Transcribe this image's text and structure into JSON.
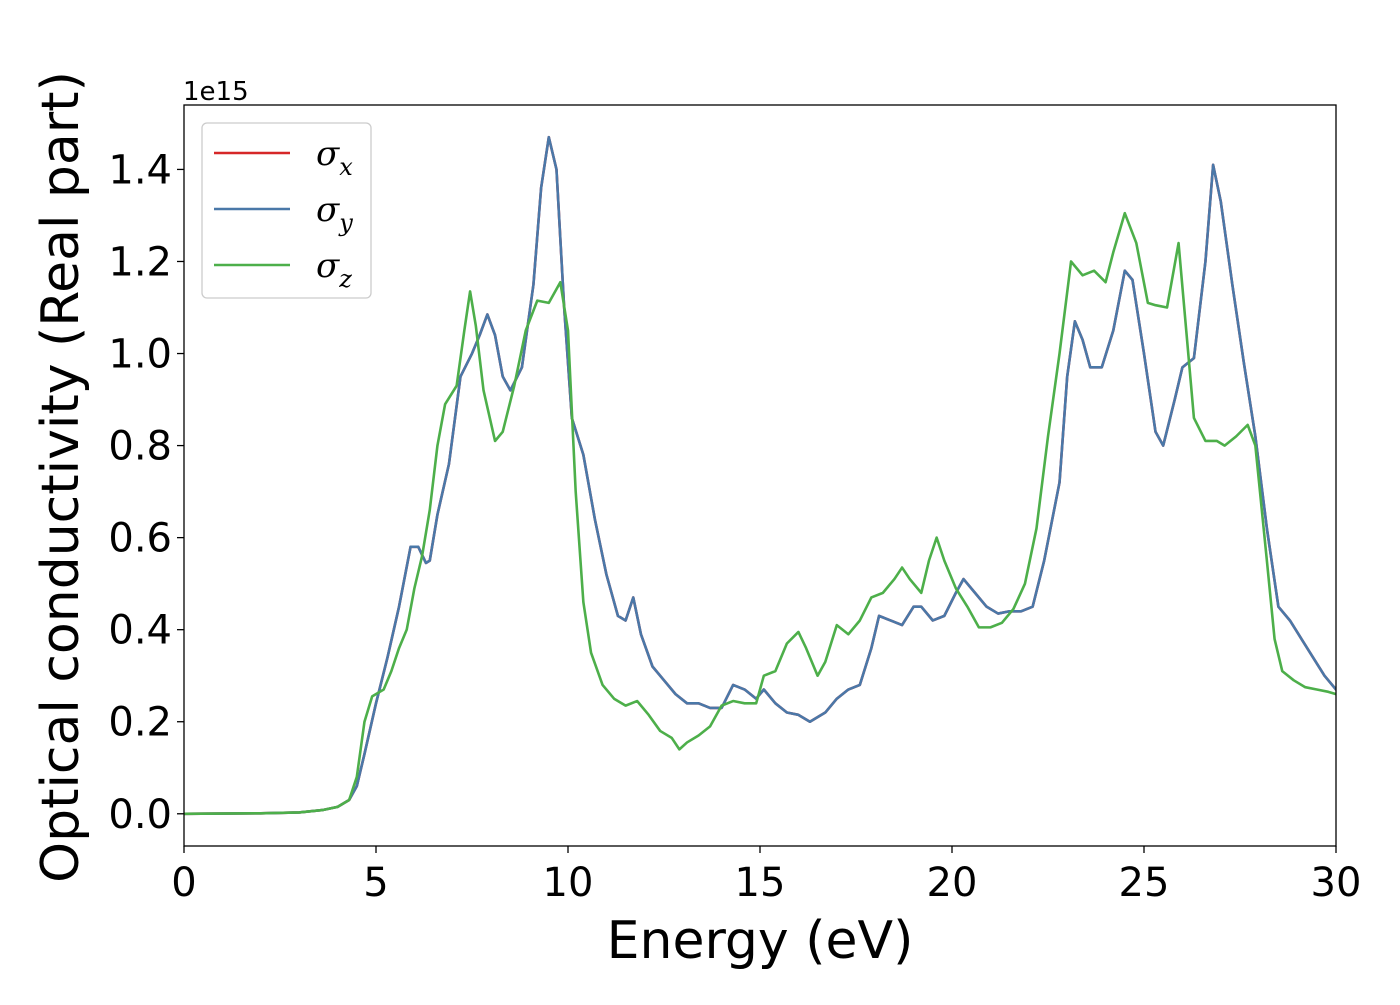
{
  "chart_data": {
    "type": "line",
    "xlabel": "Energy (eV)",
    "ylabel": "Optical conductivity (Real part)",
    "y_offset_label": "1e15",
    "xlim": [
      0,
      30
    ],
    "ylim": [
      -0.07,
      1.54
    ],
    "x_ticks": [
      0,
      5,
      10,
      15,
      20,
      25,
      30
    ],
    "x_tick_labels": [
      "0",
      "5",
      "10",
      "15",
      "20",
      "25",
      "30"
    ],
    "y_ticks": [
      0.0,
      0.2,
      0.4,
      0.6,
      0.8,
      1.0,
      1.2,
      1.4
    ],
    "y_tick_labels": [
      "0.0",
      "0.2",
      "0.4",
      "0.6",
      "0.8",
      "1.0",
      "1.2",
      "1.4"
    ],
    "grid": false,
    "legend_position": "top-left",
    "series": [
      {
        "name": "σ",
        "subscript": "x",
        "color": "#d62728",
        "points": [
          [
            0,
            0
          ],
          [
            2,
            0.001
          ],
          [
            3,
            0.003
          ],
          [
            3.6,
            0.008
          ],
          [
            4,
            0.015
          ],
          [
            4.3,
            0.03
          ],
          [
            4.5,
            0.06
          ],
          [
            4.7,
            0.13
          ],
          [
            5,
            0.24
          ],
          [
            5.3,
            0.34
          ],
          [
            5.6,
            0.45
          ],
          [
            5.9,
            0.58
          ],
          [
            6.1,
            0.58
          ],
          [
            6.3,
            0.545
          ],
          [
            6.4,
            0.55
          ],
          [
            6.6,
            0.65
          ],
          [
            6.9,
            0.76
          ],
          [
            7.2,
            0.95
          ],
          [
            7.5,
            1.0
          ],
          [
            7.7,
            1.04
          ],
          [
            7.9,
            1.085
          ],
          [
            8.1,
            1.04
          ],
          [
            8.3,
            0.95
          ],
          [
            8.5,
            0.92
          ],
          [
            8.8,
            0.97
          ],
          [
            9.1,
            1.15
          ],
          [
            9.3,
            1.36
          ],
          [
            9.5,
            1.47
          ],
          [
            9.7,
            1.4
          ],
          [
            9.9,
            1.1
          ],
          [
            10.1,
            0.86
          ],
          [
            10.4,
            0.78
          ],
          [
            10.7,
            0.64
          ],
          [
            11,
            0.52
          ],
          [
            11.3,
            0.43
          ],
          [
            11.5,
            0.42
          ],
          [
            11.7,
            0.47
          ],
          [
            11.9,
            0.39
          ],
          [
            12.2,
            0.32
          ],
          [
            12.5,
            0.29
          ],
          [
            12.8,
            0.26
          ],
          [
            13.1,
            0.24
          ],
          [
            13.4,
            0.24
          ],
          [
            13.7,
            0.23
          ],
          [
            14,
            0.23
          ],
          [
            14.3,
            0.28
          ],
          [
            14.6,
            0.27
          ],
          [
            14.9,
            0.25
          ],
          [
            15.1,
            0.27
          ],
          [
            15.4,
            0.24
          ],
          [
            15.7,
            0.22
          ],
          [
            16,
            0.215
          ],
          [
            16.3,
            0.2
          ],
          [
            16.7,
            0.22
          ],
          [
            17,
            0.25
          ],
          [
            17.3,
            0.27
          ],
          [
            17.6,
            0.28
          ],
          [
            17.9,
            0.36
          ],
          [
            18.1,
            0.43
          ],
          [
            18.4,
            0.42
          ],
          [
            18.7,
            0.41
          ],
          [
            19,
            0.45
          ],
          [
            19.2,
            0.45
          ],
          [
            19.5,
            0.42
          ],
          [
            19.8,
            0.43
          ],
          [
            20.1,
            0.48
          ],
          [
            20.3,
            0.51
          ],
          [
            20.6,
            0.48
          ],
          [
            20.9,
            0.45
          ],
          [
            21.2,
            0.435
          ],
          [
            21.5,
            0.44
          ],
          [
            21.8,
            0.44
          ],
          [
            22.1,
            0.45
          ],
          [
            22.4,
            0.55
          ],
          [
            22.8,
            0.72
          ],
          [
            23,
            0.95
          ],
          [
            23.2,
            1.07
          ],
          [
            23.4,
            1.03
          ],
          [
            23.6,
            0.97
          ],
          [
            23.9,
            0.97
          ],
          [
            24.2,
            1.05
          ],
          [
            24.5,
            1.18
          ],
          [
            24.7,
            1.16
          ],
          [
            25,
            1.0
          ],
          [
            25.3,
            0.83
          ],
          [
            25.5,
            0.8
          ],
          [
            25.8,
            0.9
          ],
          [
            26,
            0.97
          ],
          [
            26.3,
            0.99
          ],
          [
            26.6,
            1.2
          ],
          [
            26.8,
            1.41
          ],
          [
            27,
            1.33
          ],
          [
            27.3,
            1.15
          ],
          [
            27.6,
            0.98
          ],
          [
            27.9,
            0.82
          ],
          [
            28.2,
            0.62
          ],
          [
            28.5,
            0.45
          ],
          [
            28.8,
            0.42
          ],
          [
            29.1,
            0.38
          ],
          [
            29.4,
            0.34
          ],
          [
            29.7,
            0.3
          ],
          [
            30,
            0.27
          ]
        ]
      },
      {
        "name": "σ",
        "subscript": "y",
        "color": "#4a78a8",
        "points": [
          [
            0,
            0
          ],
          [
            2,
            0.001
          ],
          [
            3,
            0.003
          ],
          [
            3.6,
            0.008
          ],
          [
            4,
            0.015
          ],
          [
            4.3,
            0.03
          ],
          [
            4.5,
            0.06
          ],
          [
            4.7,
            0.13
          ],
          [
            5,
            0.24
          ],
          [
            5.3,
            0.34
          ],
          [
            5.6,
            0.45
          ],
          [
            5.9,
            0.58
          ],
          [
            6.1,
            0.58
          ],
          [
            6.3,
            0.545
          ],
          [
            6.4,
            0.55
          ],
          [
            6.6,
            0.65
          ],
          [
            6.9,
            0.76
          ],
          [
            7.2,
            0.95
          ],
          [
            7.5,
            1.0
          ],
          [
            7.7,
            1.04
          ],
          [
            7.9,
            1.085
          ],
          [
            8.1,
            1.04
          ],
          [
            8.3,
            0.95
          ],
          [
            8.5,
            0.92
          ],
          [
            8.8,
            0.97
          ],
          [
            9.1,
            1.15
          ],
          [
            9.3,
            1.36
          ],
          [
            9.5,
            1.47
          ],
          [
            9.7,
            1.4
          ],
          [
            9.9,
            1.1
          ],
          [
            10.1,
            0.86
          ],
          [
            10.4,
            0.78
          ],
          [
            10.7,
            0.64
          ],
          [
            11,
            0.52
          ],
          [
            11.3,
            0.43
          ],
          [
            11.5,
            0.42
          ],
          [
            11.7,
            0.47
          ],
          [
            11.9,
            0.39
          ],
          [
            12.2,
            0.32
          ],
          [
            12.5,
            0.29
          ],
          [
            12.8,
            0.26
          ],
          [
            13.1,
            0.24
          ],
          [
            13.4,
            0.24
          ],
          [
            13.7,
            0.23
          ],
          [
            14,
            0.23
          ],
          [
            14.3,
            0.28
          ],
          [
            14.6,
            0.27
          ],
          [
            14.9,
            0.25
          ],
          [
            15.1,
            0.27
          ],
          [
            15.4,
            0.24
          ],
          [
            15.7,
            0.22
          ],
          [
            16,
            0.215
          ],
          [
            16.3,
            0.2
          ],
          [
            16.7,
            0.22
          ],
          [
            17,
            0.25
          ],
          [
            17.3,
            0.27
          ],
          [
            17.6,
            0.28
          ],
          [
            17.9,
            0.36
          ],
          [
            18.1,
            0.43
          ],
          [
            18.4,
            0.42
          ],
          [
            18.7,
            0.41
          ],
          [
            19,
            0.45
          ],
          [
            19.2,
            0.45
          ],
          [
            19.5,
            0.42
          ],
          [
            19.8,
            0.43
          ],
          [
            20.1,
            0.48
          ],
          [
            20.3,
            0.51
          ],
          [
            20.6,
            0.48
          ],
          [
            20.9,
            0.45
          ],
          [
            21.2,
            0.435
          ],
          [
            21.5,
            0.44
          ],
          [
            21.8,
            0.44
          ],
          [
            22.1,
            0.45
          ],
          [
            22.4,
            0.55
          ],
          [
            22.8,
            0.72
          ],
          [
            23,
            0.95
          ],
          [
            23.2,
            1.07
          ],
          [
            23.4,
            1.03
          ],
          [
            23.6,
            0.97
          ],
          [
            23.9,
            0.97
          ],
          [
            24.2,
            1.05
          ],
          [
            24.5,
            1.18
          ],
          [
            24.7,
            1.16
          ],
          [
            25,
            1.0
          ],
          [
            25.3,
            0.83
          ],
          [
            25.5,
            0.8
          ],
          [
            25.8,
            0.9
          ],
          [
            26,
            0.97
          ],
          [
            26.3,
            0.99
          ],
          [
            26.6,
            1.2
          ],
          [
            26.8,
            1.41
          ],
          [
            27,
            1.33
          ],
          [
            27.3,
            1.15
          ],
          [
            27.6,
            0.98
          ],
          [
            27.9,
            0.82
          ],
          [
            28.2,
            0.62
          ],
          [
            28.5,
            0.45
          ],
          [
            28.8,
            0.42
          ],
          [
            29.1,
            0.38
          ],
          [
            29.4,
            0.34
          ],
          [
            29.7,
            0.3
          ],
          [
            30,
            0.27
          ]
        ]
      },
      {
        "name": "σ",
        "subscript": "z",
        "color": "#4daf4a",
        "points": [
          [
            0,
            0
          ],
          [
            2,
            0.001
          ],
          [
            3,
            0.003
          ],
          [
            3.6,
            0.008
          ],
          [
            4,
            0.015
          ],
          [
            4.3,
            0.03
          ],
          [
            4.5,
            0.08
          ],
          [
            4.7,
            0.2
          ],
          [
            4.9,
            0.255
          ],
          [
            5.2,
            0.27
          ],
          [
            5.4,
            0.31
          ],
          [
            5.6,
            0.36
          ],
          [
            5.8,
            0.4
          ],
          [
            6,
            0.49
          ],
          [
            6.2,
            0.56
          ],
          [
            6.4,
            0.66
          ],
          [
            6.6,
            0.8
          ],
          [
            6.8,
            0.89
          ],
          [
            7.1,
            0.93
          ],
          [
            7.3,
            1.05
          ],
          [
            7.45,
            1.135
          ],
          [
            7.6,
            1.06
          ],
          [
            7.8,
            0.92
          ],
          [
            8.1,
            0.81
          ],
          [
            8.3,
            0.83
          ],
          [
            8.6,
            0.93
          ],
          [
            8.9,
            1.05
          ],
          [
            9.2,
            1.115
          ],
          [
            9.5,
            1.11
          ],
          [
            9.8,
            1.155
          ],
          [
            10,
            1.05
          ],
          [
            10.2,
            0.7
          ],
          [
            10.4,
            0.46
          ],
          [
            10.6,
            0.35
          ],
          [
            10.9,
            0.28
          ],
          [
            11.2,
            0.25
          ],
          [
            11.5,
            0.235
          ],
          [
            11.8,
            0.245
          ],
          [
            12.1,
            0.215
          ],
          [
            12.4,
            0.18
          ],
          [
            12.7,
            0.165
          ],
          [
            12.9,
            0.14
          ],
          [
            13.1,
            0.155
          ],
          [
            13.4,
            0.17
          ],
          [
            13.7,
            0.19
          ],
          [
            14,
            0.235
          ],
          [
            14.3,
            0.245
          ],
          [
            14.6,
            0.24
          ],
          [
            14.9,
            0.24
          ],
          [
            15.1,
            0.3
          ],
          [
            15.4,
            0.31
          ],
          [
            15.7,
            0.37
          ],
          [
            16,
            0.395
          ],
          [
            16.2,
            0.36
          ],
          [
            16.5,
            0.3
          ],
          [
            16.7,
            0.33
          ],
          [
            17,
            0.41
          ],
          [
            17.3,
            0.39
          ],
          [
            17.6,
            0.42
          ],
          [
            17.9,
            0.47
          ],
          [
            18.2,
            0.48
          ],
          [
            18.5,
            0.51
          ],
          [
            18.7,
            0.535
          ],
          [
            18.9,
            0.51
          ],
          [
            19.2,
            0.48
          ],
          [
            19.4,
            0.55
          ],
          [
            19.6,
            0.6
          ],
          [
            19.8,
            0.55
          ],
          [
            20.1,
            0.49
          ],
          [
            20.4,
            0.45
          ],
          [
            20.7,
            0.405
          ],
          [
            21,
            0.405
          ],
          [
            21.3,
            0.415
          ],
          [
            21.6,
            0.445
          ],
          [
            21.9,
            0.5
          ],
          [
            22.2,
            0.62
          ],
          [
            22.5,
            0.82
          ],
          [
            22.8,
            1.0
          ],
          [
            23.1,
            1.2
          ],
          [
            23.4,
            1.17
          ],
          [
            23.7,
            1.18
          ],
          [
            24,
            1.155
          ],
          [
            24.2,
            1.22
          ],
          [
            24.5,
            1.305
          ],
          [
            24.8,
            1.24
          ],
          [
            25.1,
            1.11
          ],
          [
            25.3,
            1.105
          ],
          [
            25.6,
            1.1
          ],
          [
            25.9,
            1.24
          ],
          [
            26.1,
            1.05
          ],
          [
            26.3,
            0.86
          ],
          [
            26.6,
            0.81
          ],
          [
            26.9,
            0.81
          ],
          [
            27.1,
            0.8
          ],
          [
            27.4,
            0.82
          ],
          [
            27.7,
            0.845
          ],
          [
            27.9,
            0.8
          ],
          [
            28.2,
            0.55
          ],
          [
            28.4,
            0.38
          ],
          [
            28.6,
            0.31
          ],
          [
            28.9,
            0.29
          ],
          [
            29.2,
            0.275
          ],
          [
            29.5,
            0.27
          ],
          [
            29.8,
            0.265
          ],
          [
            30,
            0.26
          ]
        ]
      }
    ]
  }
}
